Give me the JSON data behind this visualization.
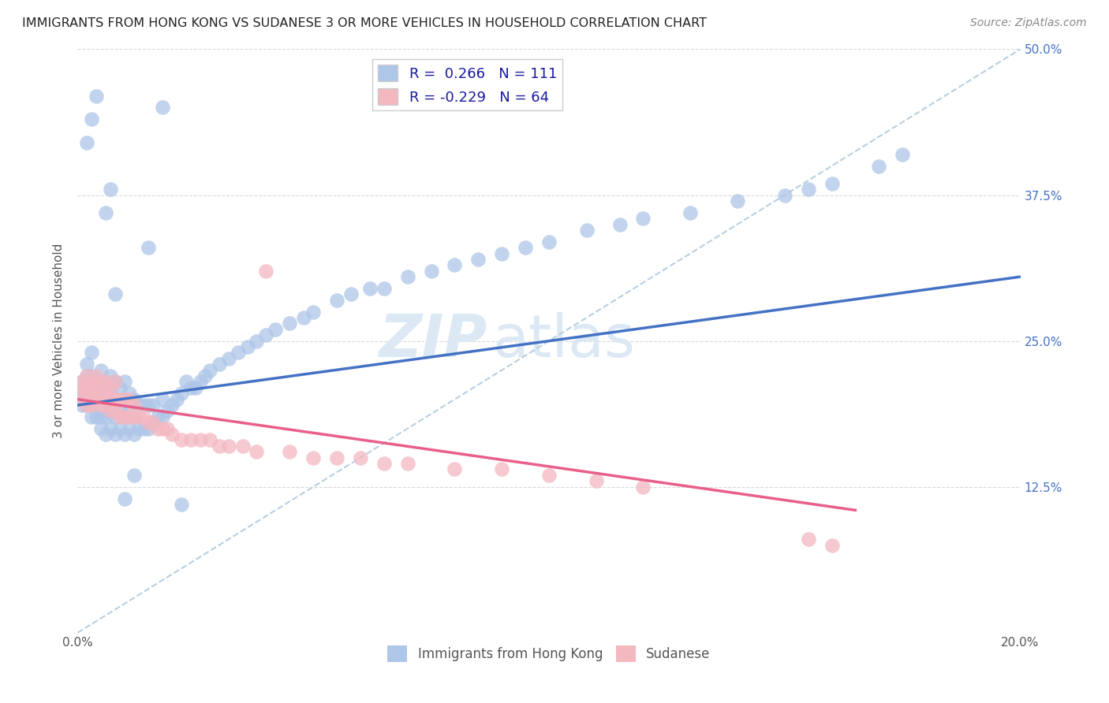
{
  "title": "IMMIGRANTS FROM HONG KONG VS SUDANESE 3 OR MORE VEHICLES IN HOUSEHOLD CORRELATION CHART",
  "source": "Source: ZipAtlas.com",
  "ylabel": "3 or more Vehicles in Household",
  "x_min": 0.0,
  "x_max": 0.2,
  "y_min": 0.0,
  "y_max": 0.5,
  "x_ticks": [
    0.0,
    0.04,
    0.08,
    0.12,
    0.16,
    0.2
  ],
  "x_tick_labels": [
    "0.0%",
    "",
    "",
    "",
    "",
    "20.0%"
  ],
  "y_ticks": [
    0.0,
    0.125,
    0.25,
    0.375,
    0.5
  ],
  "y_tick_labels": [
    "",
    "12.5%",
    "25.0%",
    "37.5%",
    "50.0%"
  ],
  "legend_bottom": [
    "Immigrants from Hong Kong",
    "Sudanese"
  ],
  "r_hk": 0.266,
  "r_sd": -0.229,
  "n_hk": 111,
  "n_sd": 64,
  "hk_color": "#aec6e8",
  "sd_color": "#f4b8c1",
  "hk_line_color": "#4472c4",
  "sd_line_color": "#e8608a",
  "dashed_line_color": "#b8cfe0",
  "watermark_color": "#dce9f5",
  "background_color": "#ffffff",
  "grid_color": "#d0d0d0",
  "hk_line_x0": 0.0,
  "hk_line_y0": 0.195,
  "hk_line_x1": 0.2,
  "hk_line_y1": 0.305,
  "sd_line_x0": 0.0,
  "sd_line_y0": 0.2,
  "sd_line_x1": 0.165,
  "sd_line_y1": 0.105,
  "hk_x": [
    0.001,
    0.001,
    0.001,
    0.001,
    0.002,
    0.002,
    0.002,
    0.002,
    0.002,
    0.003,
    0.003,
    0.003,
    0.003,
    0.003,
    0.004,
    0.004,
    0.004,
    0.004,
    0.005,
    0.005,
    0.005,
    0.005,
    0.005,
    0.006,
    0.006,
    0.006,
    0.006,
    0.007,
    0.007,
    0.007,
    0.007,
    0.008,
    0.008,
    0.008,
    0.008,
    0.009,
    0.009,
    0.009,
    0.01,
    0.01,
    0.01,
    0.01,
    0.011,
    0.011,
    0.011,
    0.012,
    0.012,
    0.012,
    0.013,
    0.013,
    0.014,
    0.014,
    0.015,
    0.015,
    0.016,
    0.016,
    0.017,
    0.018,
    0.018,
    0.019,
    0.02,
    0.021,
    0.022,
    0.023,
    0.024,
    0.025,
    0.026,
    0.027,
    0.028,
    0.03,
    0.032,
    0.034,
    0.036,
    0.038,
    0.04,
    0.042,
    0.045,
    0.048,
    0.05,
    0.055,
    0.058,
    0.062,
    0.065,
    0.07,
    0.075,
    0.08,
    0.085,
    0.09,
    0.095,
    0.1,
    0.108,
    0.115,
    0.12,
    0.13,
    0.14,
    0.15,
    0.155,
    0.16,
    0.17,
    0.175,
    0.002,
    0.003,
    0.004,
    0.006,
    0.007,
    0.008,
    0.01,
    0.012,
    0.015,
    0.018,
    0.022
  ],
  "hk_y": [
    0.195,
    0.2,
    0.205,
    0.215,
    0.195,
    0.2,
    0.21,
    0.22,
    0.23,
    0.185,
    0.195,
    0.21,
    0.22,
    0.24,
    0.185,
    0.195,
    0.205,
    0.215,
    0.175,
    0.185,
    0.2,
    0.215,
    0.225,
    0.17,
    0.185,
    0.2,
    0.215,
    0.175,
    0.19,
    0.205,
    0.22,
    0.17,
    0.185,
    0.2,
    0.215,
    0.175,
    0.19,
    0.21,
    0.17,
    0.185,
    0.2,
    0.215,
    0.175,
    0.19,
    0.205,
    0.17,
    0.185,
    0.2,
    0.175,
    0.195,
    0.175,
    0.195,
    0.175,
    0.195,
    0.18,
    0.195,
    0.185,
    0.185,
    0.2,
    0.19,
    0.195,
    0.2,
    0.205,
    0.215,
    0.21,
    0.21,
    0.215,
    0.22,
    0.225,
    0.23,
    0.235,
    0.24,
    0.245,
    0.25,
    0.255,
    0.26,
    0.265,
    0.27,
    0.275,
    0.285,
    0.29,
    0.295,
    0.295,
    0.305,
    0.31,
    0.315,
    0.32,
    0.325,
    0.33,
    0.335,
    0.345,
    0.35,
    0.355,
    0.36,
    0.37,
    0.375,
    0.38,
    0.385,
    0.4,
    0.41,
    0.42,
    0.44,
    0.46,
    0.36,
    0.38,
    0.29,
    0.115,
    0.135,
    0.33,
    0.45,
    0.11
  ],
  "sd_x": [
    0.001,
    0.001,
    0.001,
    0.002,
    0.002,
    0.002,
    0.002,
    0.003,
    0.003,
    0.003,
    0.003,
    0.004,
    0.004,
    0.004,
    0.005,
    0.005,
    0.005,
    0.006,
    0.006,
    0.006,
    0.007,
    0.007,
    0.007,
    0.008,
    0.008,
    0.008,
    0.009,
    0.009,
    0.01,
    0.01,
    0.011,
    0.011,
    0.012,
    0.012,
    0.013,
    0.014,
    0.015,
    0.016,
    0.017,
    0.018,
    0.019,
    0.02,
    0.022,
    0.024,
    0.026,
    0.028,
    0.03,
    0.032,
    0.035,
    0.038,
    0.04,
    0.045,
    0.05,
    0.055,
    0.06,
    0.065,
    0.07,
    0.08,
    0.09,
    0.1,
    0.11,
    0.12,
    0.155,
    0.16
  ],
  "sd_y": [
    0.21,
    0.2,
    0.215,
    0.205,
    0.21,
    0.195,
    0.22,
    0.2,
    0.21,
    0.195,
    0.215,
    0.2,
    0.21,
    0.22,
    0.195,
    0.205,
    0.215,
    0.195,
    0.205,
    0.215,
    0.19,
    0.2,
    0.21,
    0.19,
    0.2,
    0.215,
    0.185,
    0.2,
    0.185,
    0.2,
    0.185,
    0.2,
    0.185,
    0.195,
    0.185,
    0.185,
    0.18,
    0.18,
    0.175,
    0.175,
    0.175,
    0.17,
    0.165,
    0.165,
    0.165,
    0.165,
    0.16,
    0.16,
    0.16,
    0.155,
    0.31,
    0.155,
    0.15,
    0.15,
    0.15,
    0.145,
    0.145,
    0.14,
    0.14,
    0.135,
    0.13,
    0.125,
    0.08,
    0.075
  ]
}
